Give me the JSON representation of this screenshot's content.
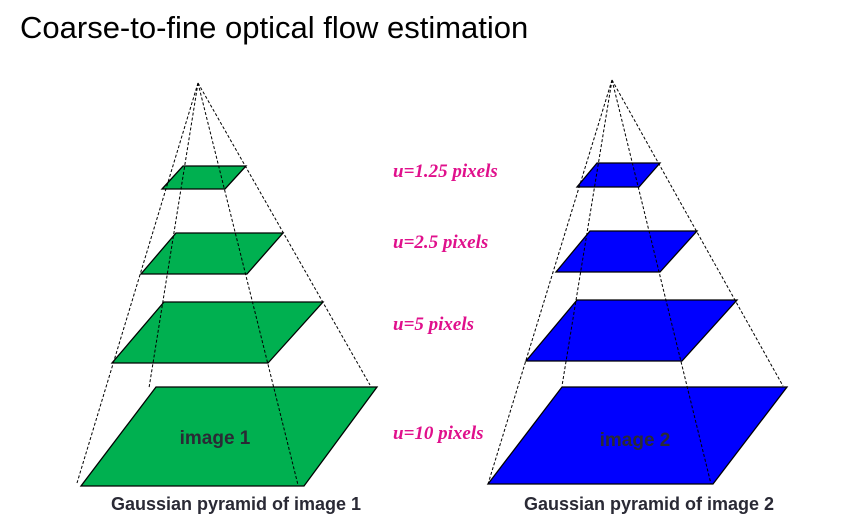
{
  "title": "Coarse-to-fine optical flow estimation",
  "colors": {
    "pyramid1": "#00b050",
    "pyramid2": "#0000ff",
    "level_labels": "#e0108c"
  },
  "levels": [
    {
      "label": "u=1.25 pixels"
    },
    {
      "label": "u=2.5 pixels"
    },
    {
      "label": "u=5 pixels"
    },
    {
      "label": "u=10 pixels"
    }
  ],
  "pyramid1": {
    "image_label": "image 1",
    "caption": "Gaussian pyramid of image 1"
  },
  "pyramid2": {
    "image_label": "image 2",
    "caption": "Gaussian pyramid of image 2"
  }
}
